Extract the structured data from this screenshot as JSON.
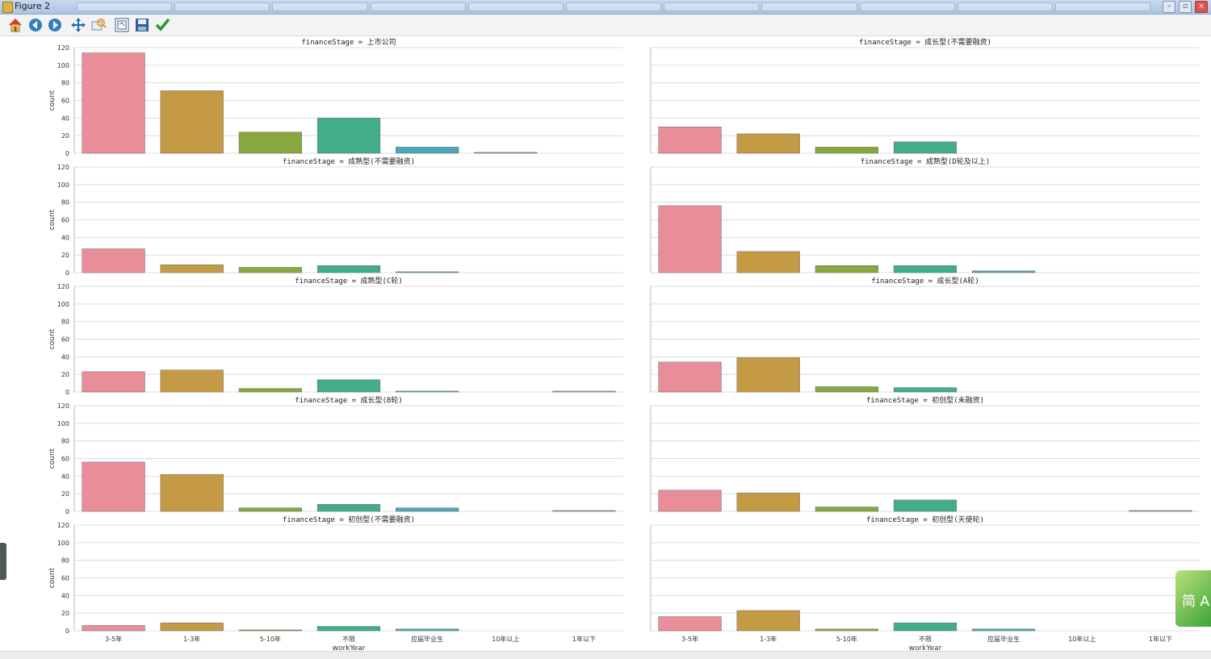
{
  "window": {
    "title": "Figure 2"
  },
  "toolbar": {
    "buttons": [
      "home-icon",
      "back-icon",
      "forward-icon",
      "pan-icon",
      "zoom-icon",
      "subplots-icon",
      "save-icon",
      "check-icon"
    ]
  },
  "colors": {
    "bars": [
      "#e98d99",
      "#c49a45",
      "#86a83f",
      "#43ad8a",
      "#4aa6b8",
      "#8b9cd0",
      "#c58bd0"
    ],
    "grid": "#dcdcdc",
    "badge": "#4aa83c"
  },
  "chart_data": {
    "type": "bar",
    "categories": [
      "3-5年",
      "1-3年",
      "5-10年",
      "不限",
      "应届毕业生",
      "10年以上",
      "1年以下"
    ],
    "xlabel": "workYear",
    "ylabel": "count",
    "ylim": [
      0,
      120
    ],
    "yticks": [
      0,
      20,
      40,
      60,
      80,
      100,
      120
    ],
    "grid": true,
    "facets": [
      {
        "title": "financeStage = 上市公司",
        "values": [
          114,
          71,
          24,
          40,
          7,
          1,
          0
        ]
      },
      {
        "title": "financeStage = 成长型(不需要融资)",
        "values": [
          30,
          22,
          7,
          13,
          0,
          0,
          0
        ]
      },
      {
        "title": "financeStage = 成熟型(不需要融资)",
        "values": [
          27,
          9,
          6,
          8,
          1,
          0,
          0
        ]
      },
      {
        "title": "financeStage = 成熟型(D轮及以上)",
        "values": [
          76,
          24,
          8,
          8,
          2,
          0,
          0
        ]
      },
      {
        "title": "financeStage = 成熟型(C轮)",
        "values": [
          23,
          25,
          4,
          14,
          1,
          0,
          1
        ]
      },
      {
        "title": "financeStage = 成长型(A轮)",
        "values": [
          34,
          39,
          6,
          5,
          0,
          0,
          0
        ]
      },
      {
        "title": "financeStage = 成长型(B轮)",
        "values": [
          56,
          42,
          4,
          8,
          4,
          0,
          1
        ]
      },
      {
        "title": "financeStage = 初创型(未融资)",
        "values": [
          24,
          21,
          5,
          13,
          0,
          0,
          1
        ]
      },
      {
        "title": "financeStage = 初创型(不需要融资)",
        "values": [
          6,
          9,
          1,
          5,
          2,
          0,
          0
        ]
      },
      {
        "title": "financeStage = 初创型(天使轮)",
        "values": [
          16,
          23,
          2,
          9,
          2,
          0,
          0
        ]
      }
    ]
  },
  "badge": {
    "text": "简 A 设"
  }
}
